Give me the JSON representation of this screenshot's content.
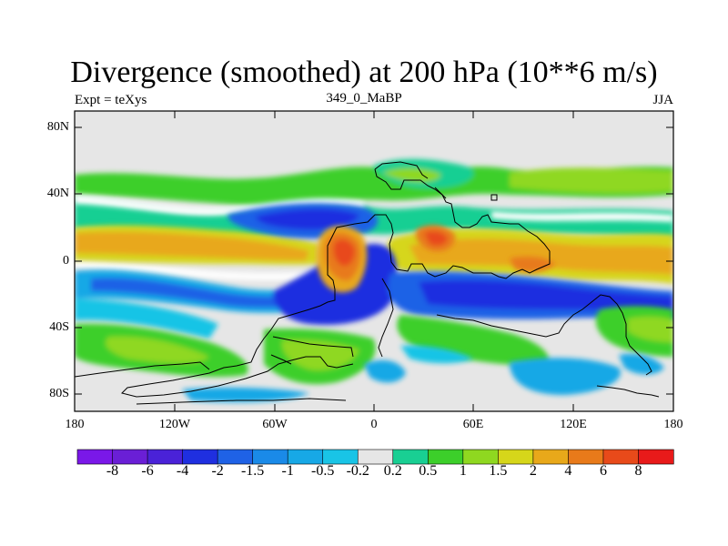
{
  "header": {
    "title": "Divergence (smoothed) at 200 hPa (10**6 m/s)",
    "experiment": "Expt = teXys",
    "case_id": "349_0_MaBP",
    "season": "JJA"
  },
  "map": {
    "lat_labels": [
      "80N",
      "40N",
      "0",
      "40S",
      "80S"
    ],
    "lon_labels": [
      "180",
      "120W",
      "60W",
      "0",
      "60E",
      "120E",
      "180"
    ]
  },
  "colorbar": {
    "labels": [
      "-8",
      "-6",
      "-4",
      "-2",
      "-1.5",
      "-1",
      "-0.5",
      "-0.2",
      "0.2",
      "0.5",
      "1",
      "1.5",
      "2",
      "4",
      "6",
      "8"
    ],
    "colors": [
      "#7a18e8",
      "#6a1fd6",
      "#4a22d8",
      "#1f2fe0",
      "#1f62e6",
      "#1a8ae8",
      "#17a8e6",
      "#19c4e6",
      "#e6e6e6",
      "#19cf93",
      "#3ccf2a",
      "#8fd820",
      "#d6d61a",
      "#e8a81a",
      "#e87a1a",
      "#e84a1a",
      "#e81a1a"
    ]
  },
  "palette": {
    "background_field": "#e6e6e6",
    "neutral": "#ffffff"
  }
}
